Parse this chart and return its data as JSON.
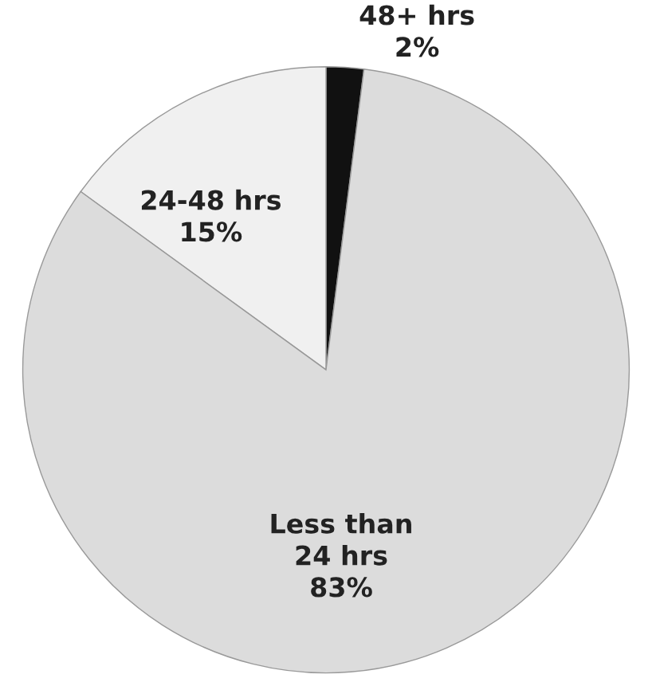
{
  "chart_data": {
    "type": "pie",
    "categories": [
      "48+ hrs",
      "24-48 hrs",
      "Less than\n24 hrs"
    ],
    "values": [
      2,
      15,
      83
    ],
    "colors": [
      "#111111",
      "#f0f0f0",
      "#dcdcdc"
    ],
    "value_labels": [
      "2%",
      "15%",
      "83%"
    ]
  }
}
